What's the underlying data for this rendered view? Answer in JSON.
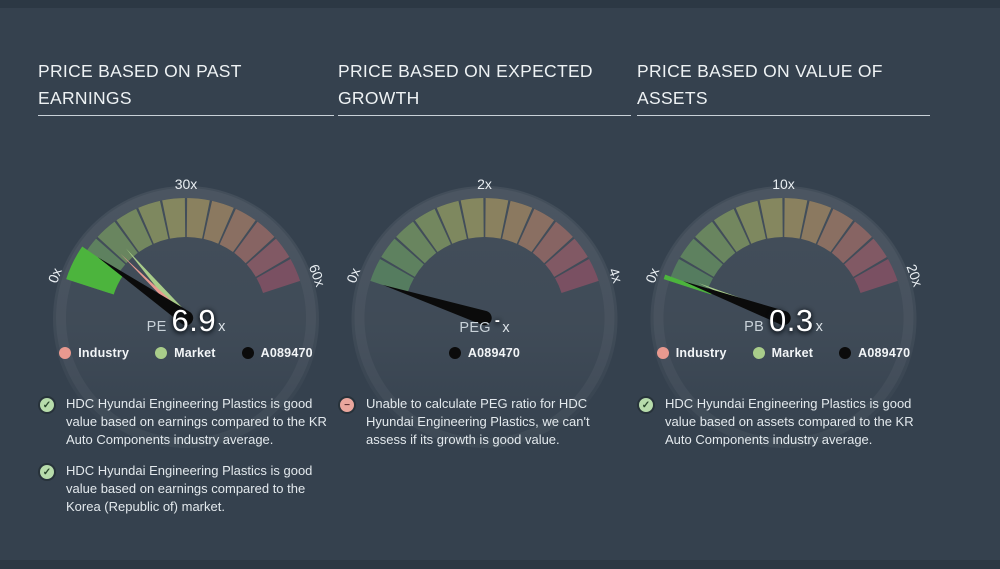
{
  "page": {
    "background_color": "#35414e",
    "edge_strip_color": "#2c3844"
  },
  "colors": {
    "industry": "#e8998f",
    "market": "#a9cd8a",
    "company": "#0b0b0b",
    "highlight": "#4cb43d",
    "segment_scale": [
      "#578060",
      "#618660",
      "#6c8a60",
      "#778c60",
      "#838d60",
      "#8b8c5f",
      "#908660",
      "#917d61",
      "#907263",
      "#8d6664",
      "#875a65",
      "#7f5063"
    ],
    "tick_label": "#e9eef2",
    "check_icon_bg": "#b7dcab",
    "minus_icon_bg": "#eaa69d"
  },
  "chart_data": [
    {
      "type": "gauge",
      "title": "PRICE BASED ON PAST EARNINGS",
      "title_lines": [
        "PRICE BASED ON PAST",
        "EARNINGS"
      ],
      "metric": "PE",
      "value": 6.9,
      "value_display": "6.9",
      "unit": "x",
      "axis": {
        "min": 0,
        "max": 60,
        "tick_labels": [
          "0x",
          "30x",
          "60x"
        ]
      },
      "highlight_range": [
        0,
        6.9
      ],
      "needles": [
        {
          "name": "Market",
          "value": 13,
          "color_key": "market"
        },
        {
          "name": "Industry",
          "value": 11,
          "color_key": "industry"
        },
        {
          "name": "A089470",
          "value": 6.9,
          "color_key": "company"
        }
      ],
      "legend": [
        {
          "label": "Industry",
          "color_key": "industry"
        },
        {
          "label": "Market",
          "color_key": "market"
        },
        {
          "label": "A089470",
          "color_key": "company"
        }
      ],
      "statements": [
        {
          "icon": "check",
          "text": "HDC Hyundai Engineering Plastics is good value based on earnings compared to the KR Auto Components industry average."
        },
        {
          "icon": "check",
          "text": "HDC Hyundai Engineering Plastics is good value based on earnings compared to the Korea (Republic of) market."
        }
      ]
    },
    {
      "type": "gauge",
      "title": "PRICE BASED ON EXPECTED GROWTH",
      "title_lines": [
        "PRICE BASED ON EXPECTED",
        "GROWTH"
      ],
      "metric": "PEG",
      "value": null,
      "value_display": "-",
      "unit": "x",
      "axis": {
        "min": 0,
        "max": 4,
        "tick_labels": [
          "0x",
          "2x",
          "4x"
        ]
      },
      "highlight_range": null,
      "needles": [
        {
          "name": "A089470",
          "value": 0,
          "color_key": "company"
        }
      ],
      "legend": [
        {
          "label": "A089470",
          "color_key": "company"
        }
      ],
      "statements": [
        {
          "icon": "minus",
          "text": "Unable to calculate PEG ratio for HDC Hyundai Engineering Plastics, we can't assess if its growth is good value."
        }
      ]
    },
    {
      "type": "gauge",
      "title": "PRICE BASED ON VALUE OF ASSETS",
      "title_lines": [
        "PRICE BASED ON VALUE OF",
        "ASSETS"
      ],
      "metric": "PB",
      "value": 0.3,
      "value_display": "0.3",
      "unit": "x",
      "axis": {
        "min": 0,
        "max": 20,
        "tick_labels": [
          "0x",
          "10x",
          "20x"
        ]
      },
      "highlight_range": [
        0,
        0.3
      ],
      "needles": [
        {
          "name": "Market",
          "value": 0.6,
          "color_key": "market"
        },
        {
          "name": "Industry",
          "value": 0.4,
          "color_key": "industry"
        },
        {
          "name": "A089470",
          "value": 0.3,
          "color_key": "company"
        }
      ],
      "legend": [
        {
          "label": "Industry",
          "color_key": "industry"
        },
        {
          "label": "Market",
          "color_key": "market"
        },
        {
          "label": "A089470",
          "color_key": "company"
        }
      ],
      "statements": [
        {
          "icon": "check",
          "text": "HDC Hyundai Engineering Plastics is good value based on assets compared to the KR Auto Components industry average."
        }
      ]
    }
  ]
}
